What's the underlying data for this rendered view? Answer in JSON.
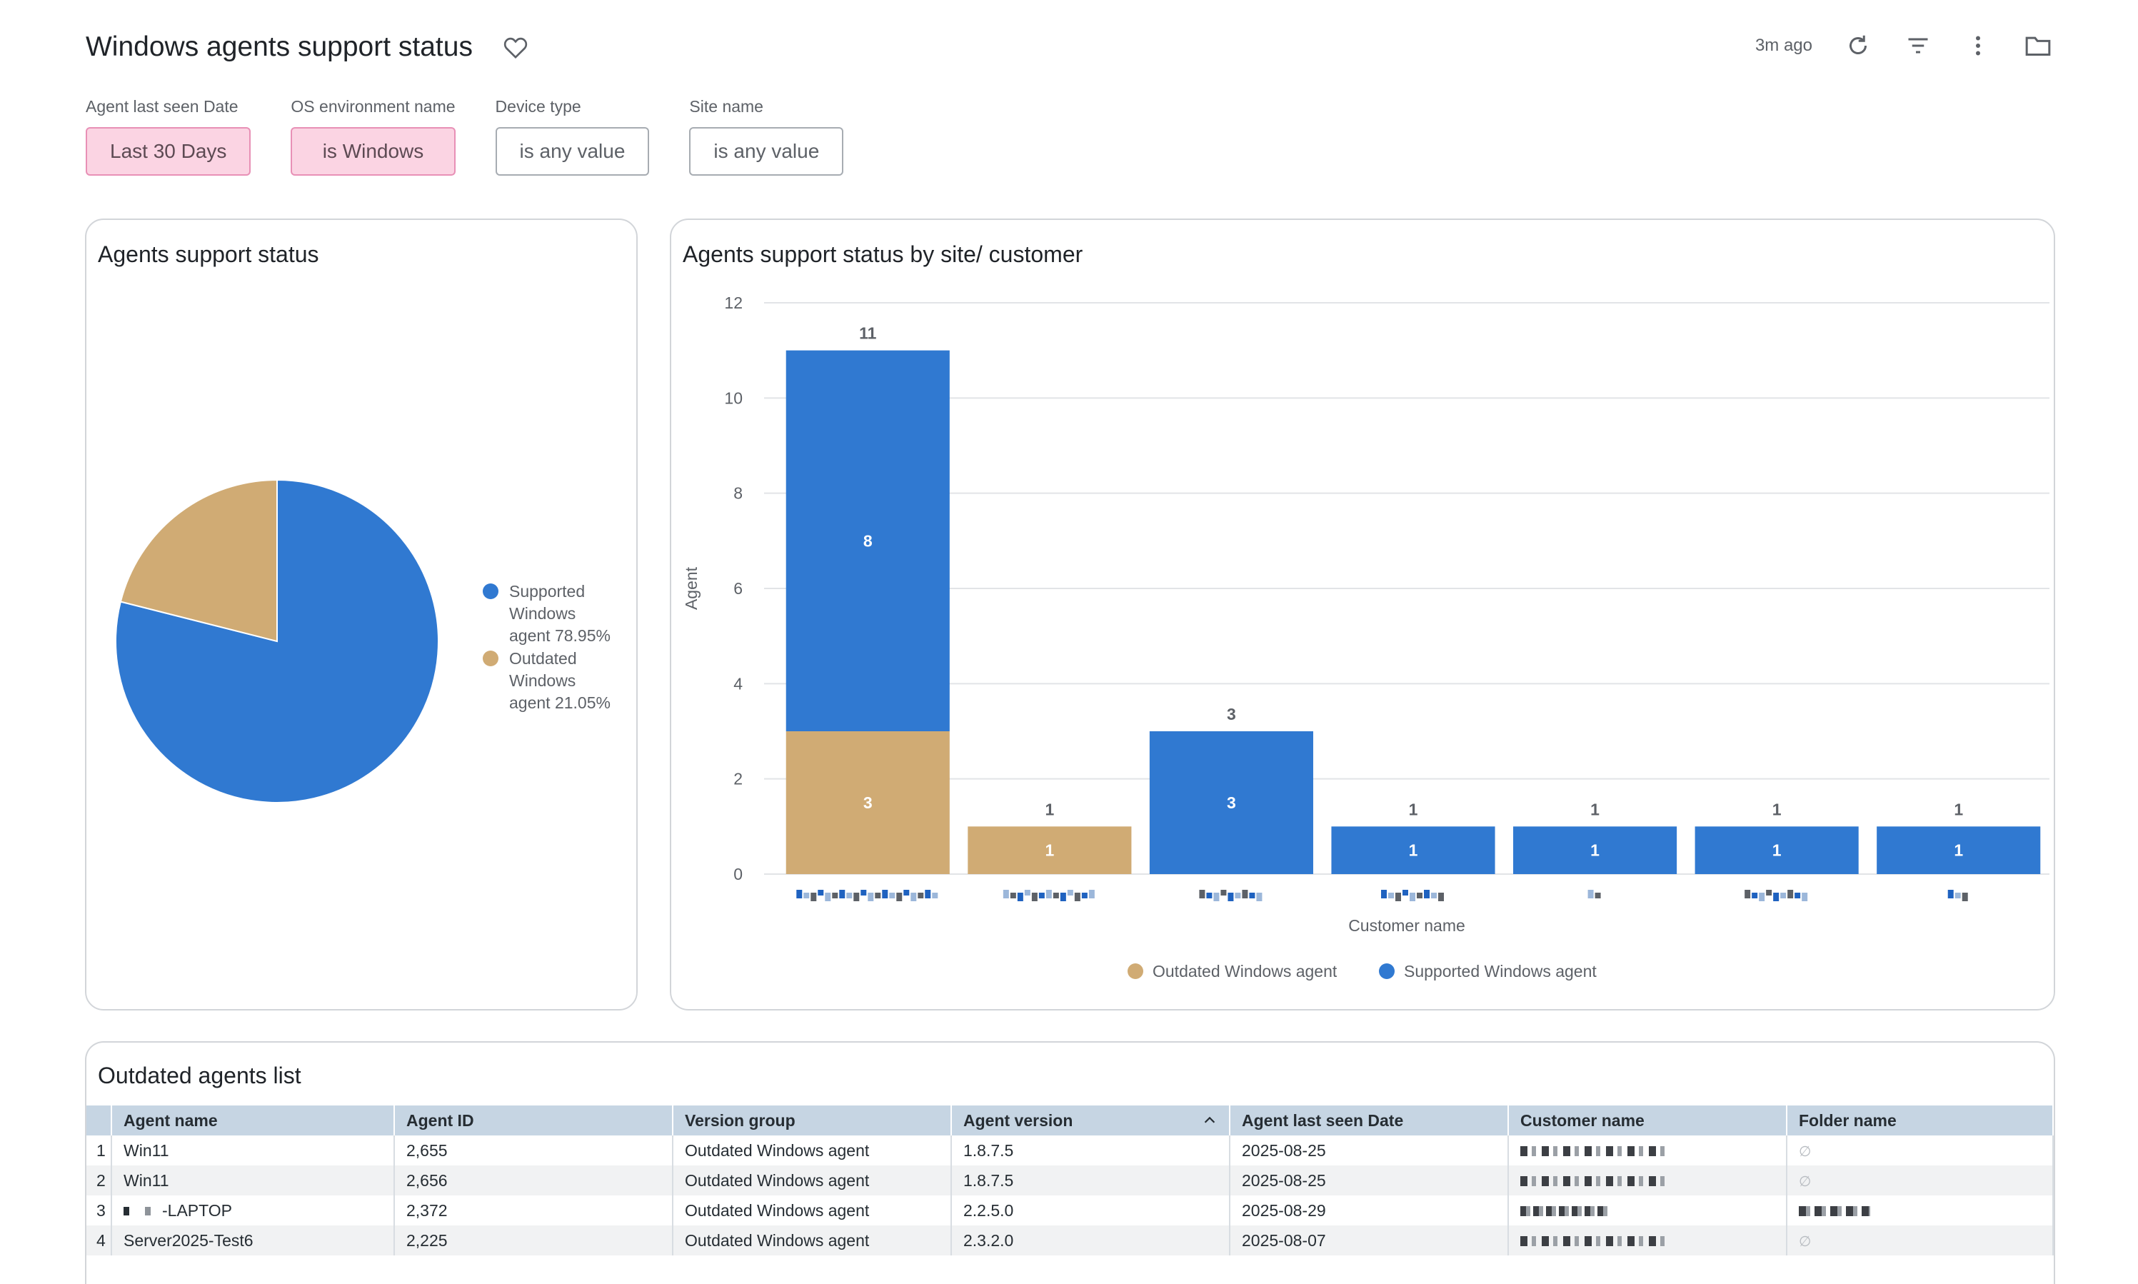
{
  "header": {
    "title": "Windows agents support status",
    "updated": "3m ago"
  },
  "filters": [
    {
      "label": "Agent last seen Date",
      "value": "Last 30 Days",
      "active": true
    },
    {
      "label": "OS environment name",
      "value": "is Windows",
      "active": true
    },
    {
      "label": "Device type",
      "value": "is any value",
      "active": false
    },
    {
      "label": "Site name",
      "value": "is any value",
      "active": false
    }
  ],
  "pie_card": {
    "title": "Agents support status"
  },
  "bar_card": {
    "title": "Agents support status by site/ customer"
  },
  "table_card": {
    "title": "Outdated agents list",
    "columns": [
      "Agent name",
      "Agent ID",
      "Version group",
      "Agent version",
      "Agent last seen Date",
      "Customer name",
      "Folder name"
    ],
    "rows": [
      {
        "n": "1",
        "agent_name": "Win11",
        "agent_id": "2,655",
        "version_group": "Outdated Windows agent",
        "agent_version": "1.8.7.5",
        "last_seen": "2025-08-25"
      },
      {
        "n": "2",
        "agent_name": "Win11",
        "agent_id": "2,656",
        "version_group": "Outdated Windows agent",
        "agent_version": "1.8.7.5",
        "last_seen": "2025-08-25"
      },
      {
        "n": "3",
        "agent_name": "-LAPTOP",
        "agent_id": "2,372",
        "version_group": "Outdated Windows agent",
        "agent_version": "2.2.5.0",
        "last_seen": "2025-08-29"
      },
      {
        "n": "4",
        "agent_name": "Server2025-Test6",
        "agent_id": "2,225",
        "version_group": "Outdated Windows agent",
        "agent_version": "2.3.2.0",
        "last_seen": "2025-08-07"
      }
    ]
  },
  "colors": {
    "supported": "#3079d1",
    "outdated": "#d0ab74",
    "filter_active_bg": "#fbd4e3"
  },
  "chart_data": [
    {
      "type": "pie",
      "title": "Agents support status",
      "slices": [
        {
          "label": "Supported Windows agent 78.95%",
          "value": 78.95,
          "color": "#3079d1"
        },
        {
          "label": "Outdated Windows agent 21.05%",
          "value": 21.05,
          "color": "#d0ab74"
        }
      ],
      "legend_position": "right"
    },
    {
      "type": "bar",
      "stacked": true,
      "title": "Agents support status by site/ customer",
      "xlabel": "Customer name",
      "ylabel": "Agent",
      "ylim": [
        0,
        12
      ],
      "yticks": [
        0,
        2,
        4,
        6,
        8,
        10,
        12
      ],
      "categories": [
        "",
        "",
        "",
        "",
        "",
        "",
        ""
      ],
      "series": [
        {
          "name": "Outdated Windows agent",
          "color": "#d0ab74",
          "values": [
            3,
            1,
            0,
            0,
            0,
            0,
            0
          ]
        },
        {
          "name": "Supported Windows agent",
          "color": "#3079d1",
          "values": [
            8,
            0,
            3,
            1,
            1,
            1,
            1
          ]
        }
      ],
      "totals": [
        11,
        1,
        3,
        1,
        1,
        1,
        1
      ],
      "grid": true,
      "legend_position": "bottom"
    }
  ]
}
